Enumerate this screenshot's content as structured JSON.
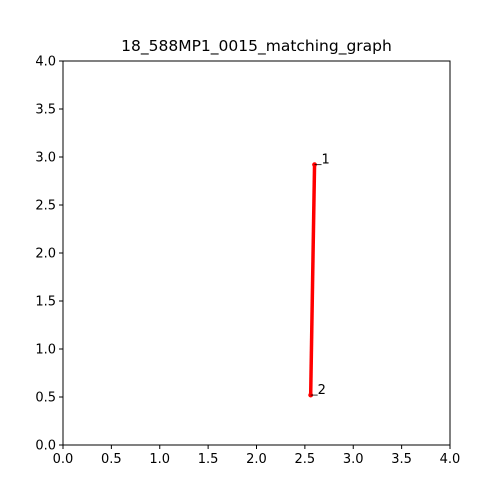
{
  "chart_data": {
    "type": "line",
    "title": "18_588MP1_0015_matching_graph",
    "xlabel": "",
    "ylabel": "",
    "xlim": [
      0.0,
      4.0
    ],
    "ylim": [
      0.0,
      4.0
    ],
    "grid": false,
    "x_ticks": [
      "0.0",
      "0.5",
      "1.0",
      "1.5",
      "2.0",
      "2.5",
      "3.0",
      "3.5",
      "4.0"
    ],
    "y_ticks": [
      "0.0",
      "0.5",
      "1.0",
      "1.5",
      "2.0",
      "2.5",
      "3.0",
      "3.5",
      "4.0"
    ],
    "nodes": [
      {
        "label": "1",
        "x": 2.6,
        "y": 2.92
      },
      {
        "label": "2",
        "x": 2.56,
        "y": 0.52
      }
    ],
    "edges": [
      {
        "from": 0,
        "to": 1
      }
    ],
    "edge_color": "#ff0000",
    "node_color": "#ff0000"
  }
}
